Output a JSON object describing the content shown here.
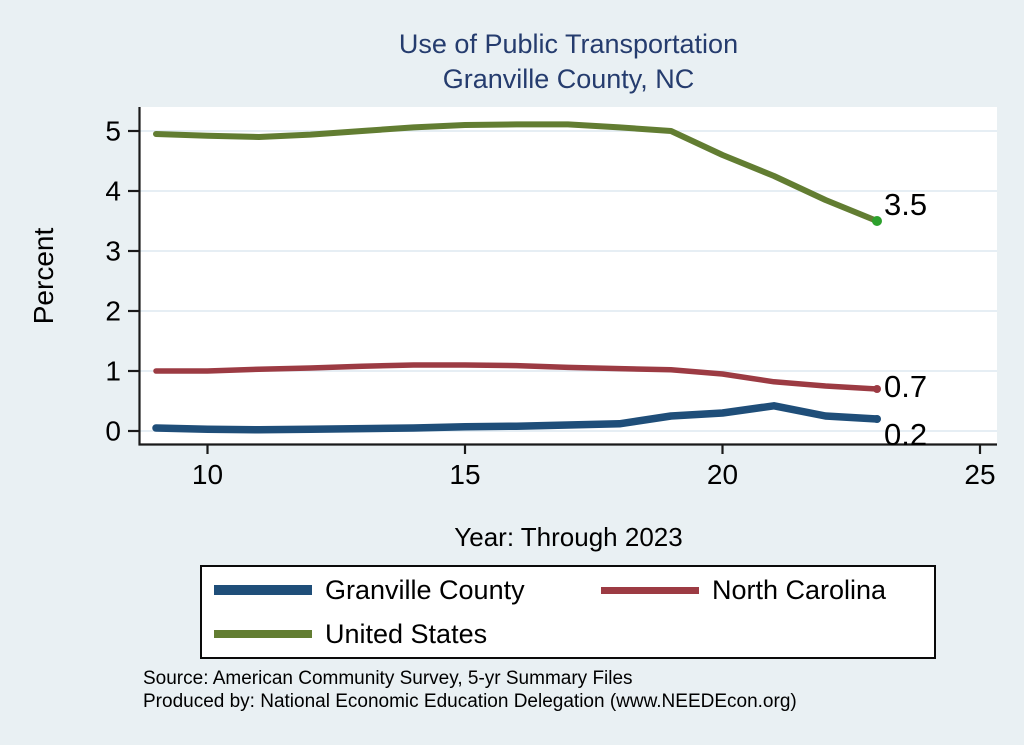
{
  "title": {
    "line1": "Use of Public Transportation",
    "line2": "Granville County, NC",
    "color": "#253c6e"
  },
  "chart_data": {
    "type": "line",
    "x": [
      9,
      10,
      11,
      12,
      13,
      14,
      15,
      16,
      17,
      18,
      19,
      20,
      21,
      22,
      23
    ],
    "series": [
      {
        "name": "United States",
        "color": "#627d32",
        "line_width": 6,
        "values": [
          4.95,
          4.92,
          4.9,
          4.94,
          5.0,
          5.06,
          5.1,
          5.11,
          5.11,
          5.06,
          5.0,
          4.6,
          4.25,
          3.85,
          3.5
        ],
        "end_label": "3.5",
        "end_label_dy": -17,
        "end_dot_color": "#2ca02c",
        "end_dot_r": 5
      },
      {
        "name": "North Carolina",
        "color": "#9c3b43",
        "line_width": 5.5,
        "values": [
          1.0,
          1.0,
          1.03,
          1.05,
          1.08,
          1.1,
          1.1,
          1.09,
          1.06,
          1.04,
          1.02,
          0.95,
          0.82,
          0.75,
          0.7
        ],
        "end_label": "0.7",
        "end_label_dy": -3,
        "end_dot_color": "#9c3b43",
        "end_dot_r": 4
      },
      {
        "name": "Granville County",
        "color": "#1f4e79",
        "line_width": 7.5,
        "values": [
          0.05,
          0.03,
          0.02,
          0.03,
          0.04,
          0.05,
          0.07,
          0.08,
          0.1,
          0.12,
          0.25,
          0.3,
          0.42,
          0.25,
          0.2
        ],
        "end_label": "0.2",
        "end_label_dy": 15,
        "end_dot_color": "#1f4e79",
        "end_dot_r": 4
      }
    ],
    "title": "Use of Public Transportation Granville County, NC",
    "xlabel": "Year: Through 2023",
    "ylabel": "Percent",
    "x_ticks": [
      10,
      15,
      20,
      25
    ],
    "y_ticks": [
      0,
      1,
      2,
      3,
      4,
      5
    ],
    "xlim": [
      8.7,
      25.3
    ],
    "ylim": [
      0,
      5.6
    ],
    "grid": true,
    "legend_position": "bottom",
    "colors": {
      "plot_background": "#ffffff",
      "page_background": "#e9f0f3",
      "gridline": "#dee9f1",
      "axis": "#1a1a1a",
      "tick_label": "#000000",
      "end_label": "#000000"
    }
  },
  "legend": {
    "items": [
      {
        "label": "Granville County",
        "color": "#1f4e79"
      },
      {
        "label": "North Carolina",
        "color": "#9c3b43"
      },
      {
        "label": "United States",
        "color": "#627d32"
      }
    ]
  },
  "footer": {
    "source": "Source: American Community Survey, 5-yr Summary Files",
    "produced": "Produced by: National Economic Education Delegation (www.NEEDEcon.org)"
  }
}
